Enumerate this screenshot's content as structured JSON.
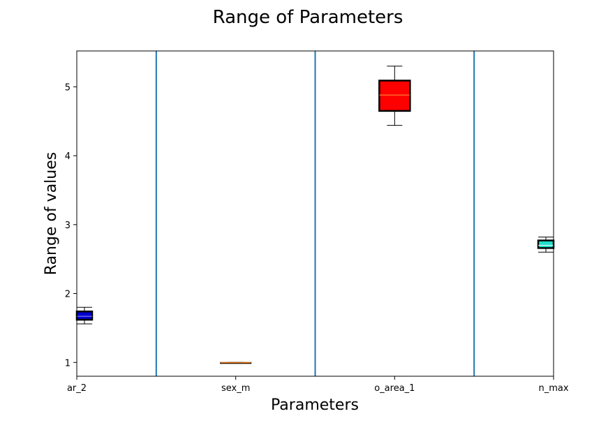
{
  "chart_data": {
    "type": "box",
    "title": "Range of Parameters",
    "xlabel": "Parameters",
    "ylabel": "Range of values",
    "ylim": [
      0.8,
      5.52
    ],
    "yticks": [
      1,
      2,
      3,
      4,
      5
    ],
    "categories": [
      "ar_2",
      "sex_m",
      "o_area_1",
      "n_max"
    ],
    "boxes": [
      {
        "name": "ar_2",
        "min": 1.56,
        "q1": 1.62,
        "median": 1.67,
        "q3": 1.74,
        "max": 1.8,
        "fill": "#0000cc",
        "median_color": "#9999ff"
      },
      {
        "name": "sex_m",
        "min": 1.0,
        "q1": 1.0,
        "median": 1.0,
        "q3": 1.0,
        "max": 1.0,
        "fill": "#ff7f0e",
        "median_color": "#ff7f0e"
      },
      {
        "name": "o_area_1",
        "min": 4.44,
        "q1": 4.65,
        "median": 4.88,
        "q3": 5.09,
        "max": 5.3,
        "fill": "#ff0000",
        "median_color": "#ffa040"
      },
      {
        "name": "n_max",
        "min": 2.6,
        "q1": 2.66,
        "median": 2.7,
        "q3": 2.77,
        "max": 2.82,
        "fill": "#22ddcc",
        "median_color": "#ffffff"
      }
    ],
    "separator_color": "#1f77b4",
    "grid": false
  }
}
